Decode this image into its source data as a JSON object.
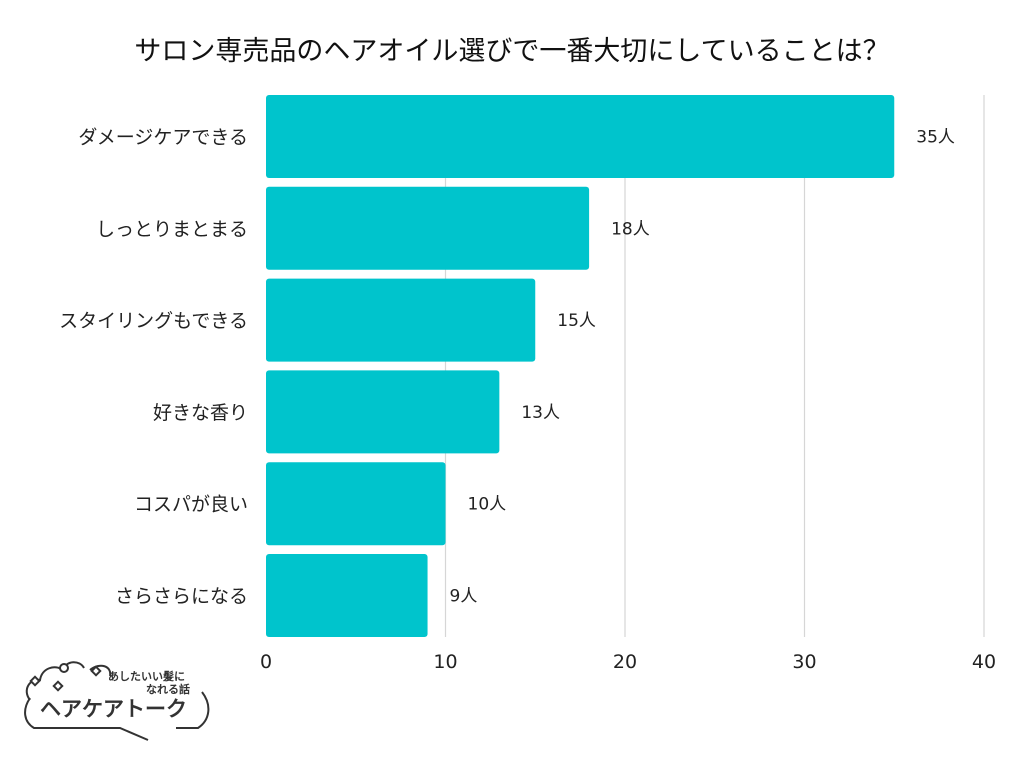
{
  "chart_data": {
    "type": "bar",
    "orientation": "horizontal",
    "title": "サロン専売品のヘアオイル選びで一番大切にしていることは？",
    "categories": [
      "ダメージケアできる",
      "しっとりまとまる",
      "スタイリングもできる",
      "好きな香り",
      "コスパが良い",
      "さらさらになる"
    ],
    "values": [
      35,
      18,
      15,
      13,
      10,
      9
    ],
    "value_suffix": "人",
    "xlim": [
      0,
      40
    ],
    "xticks": [
      0,
      10,
      20,
      30,
      40
    ],
    "grid": true,
    "bar_color": "#00C4CC"
  },
  "logo": {
    "tagline_1": "あしたいい髪に",
    "tagline_2": "なれる話",
    "name": "ヘアケアトーク"
  }
}
